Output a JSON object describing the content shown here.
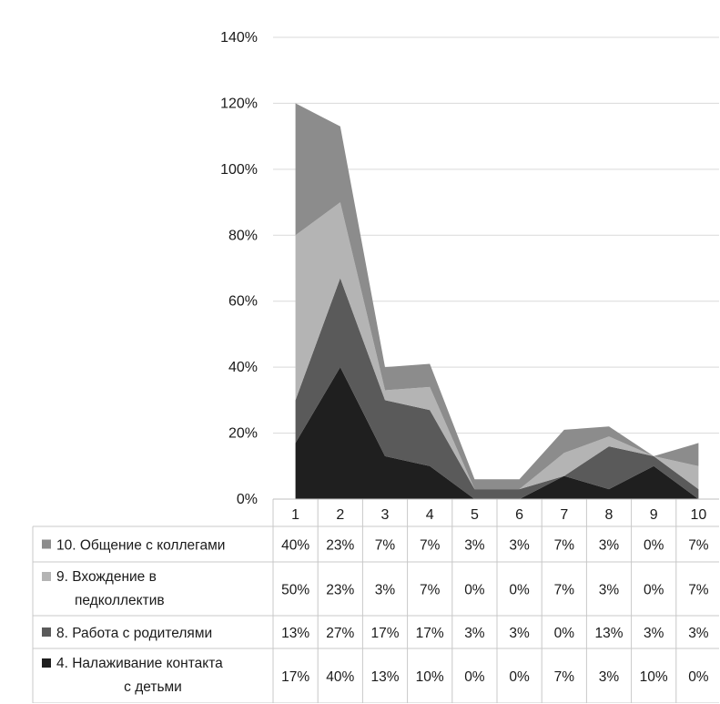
{
  "chart_data": {
    "type": "area",
    "stacked": true,
    "y_axis": {
      "min": 0,
      "max": 1.4,
      "step": 0.2,
      "format": "percent",
      "tick_labels": [
        "0%",
        "20%",
        "40%",
        "60%",
        "80%",
        "100%",
        "120%",
        "140%"
      ]
    },
    "grid": true,
    "legend": "data-table-left",
    "categories": [
      "1",
      "2",
      "3",
      "4",
      "5",
      "6",
      "7",
      "8",
      "9",
      "10"
    ],
    "series": [
      {
        "name": "4. Налаживание контакта с детьми",
        "label_lines": [
          "4. Налаживание контакта",
          "с детьми"
        ],
        "color": "#1f1f1f",
        "values": [
          0.17,
          0.4,
          0.13,
          0.1,
          0.0,
          0.0,
          0.07,
          0.03,
          0.1,
          0.0
        ],
        "labels": [
          "17%",
          "40%",
          "13%",
          "10%",
          "0%",
          "0%",
          "7%",
          "3%",
          "10%",
          "0%"
        ]
      },
      {
        "name": "8. Работа с родителями",
        "label_lines": [
          "8. Работа с родителями"
        ],
        "color": "#5a5a5a",
        "values": [
          0.13,
          0.27,
          0.17,
          0.17,
          0.03,
          0.03,
          0.0,
          0.13,
          0.03,
          0.03
        ],
        "labels": [
          "13%",
          "27%",
          "17%",
          "17%",
          "3%",
          "3%",
          "0%",
          "13%",
          "3%",
          "3%"
        ]
      },
      {
        "name": "9. Вхождение в педколлектив",
        "label_lines": [
          "9. Вхождение в",
          "педколлектив"
        ],
        "color": "#b4b4b4",
        "values": [
          0.5,
          0.23,
          0.03,
          0.07,
          0.0,
          0.0,
          0.07,
          0.03,
          0.0,
          0.07
        ],
        "labels": [
          "50%",
          "23%",
          "3%",
          "7%",
          "0%",
          "0%",
          "7%",
          "3%",
          "0%",
          "7%"
        ]
      },
      {
        "name": "10. Общение с коллегами",
        "label_lines": [
          "10. Общение с коллегами"
        ],
        "color": "#8c8c8c",
        "values": [
          0.4,
          0.23,
          0.07,
          0.07,
          0.03,
          0.03,
          0.07,
          0.03,
          0.0,
          0.07
        ],
        "labels": [
          "40%",
          "23%",
          "7%",
          "7%",
          "3%",
          "3%",
          "7%",
          "3%",
          "0%",
          "7%"
        ]
      }
    ],
    "table_row_order": [
      3,
      2,
      1,
      0
    ]
  }
}
